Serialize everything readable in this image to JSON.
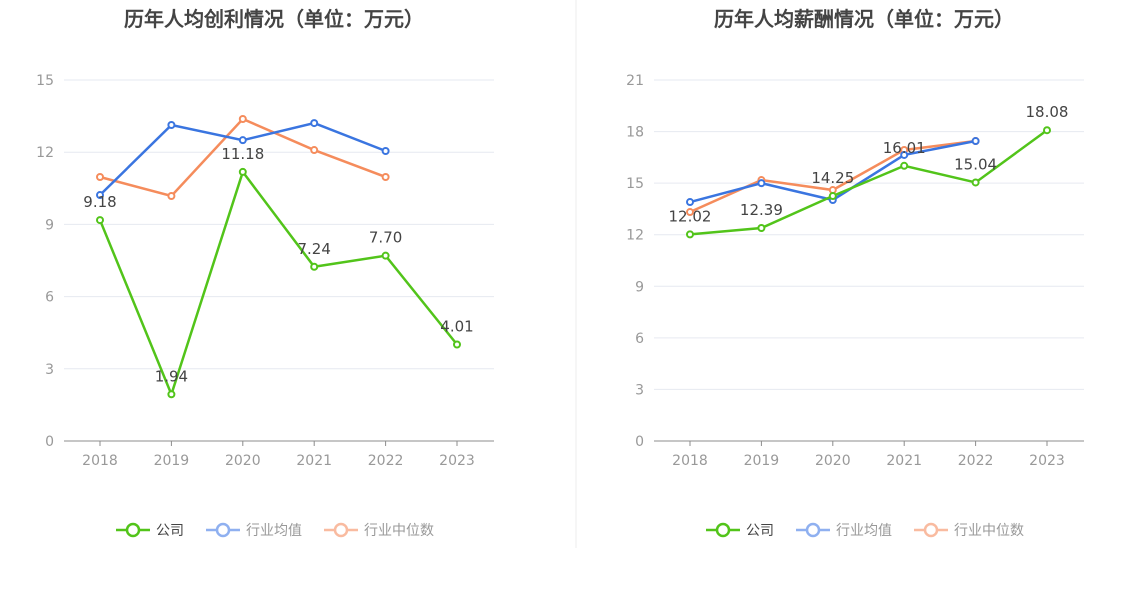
{
  "colors": {
    "company": "#52c41a",
    "avg": "#3a75e0",
    "median": "#f58c5c",
    "avg_legend": "#8fb0f0",
    "median_legend": "#f9bba0",
    "grid": "#e6e9f0",
    "axis": "#8c8c8c",
    "text": "#999999",
    "title": "#444444"
  },
  "legend": [
    "公司",
    "行业均值",
    "行业中位数"
  ],
  "chart_data": [
    {
      "type": "line",
      "title": "历年人均创利情况（单位：万元）",
      "categories": [
        "2018",
        "2019",
        "2020",
        "2021",
        "2022",
        "2023"
      ],
      "ylim": [
        0,
        15
      ],
      "yticks": [
        0,
        3,
        6,
        9,
        12,
        15
      ],
      "grid": true,
      "legend_position": "bottom",
      "series": [
        {
          "name": "公司",
          "values": [
            9.18,
            1.94,
            11.18,
            7.24,
            7.7,
            4.01
          ],
          "labels": [
            "9.18",
            "1.94",
            "11.18",
            "7.24",
            "7.70",
            "4.01"
          ]
        },
        {
          "name": "行业均值",
          "values": [
            10.22,
            13.13,
            12.5,
            13.21,
            12.05,
            null
          ]
        },
        {
          "name": "行业中位数",
          "values": [
            10.97,
            10.18,
            13.38,
            12.09,
            10.97,
            null
          ]
        }
      ]
    },
    {
      "type": "line",
      "title": "历年人均薪酬情况（单位：万元）",
      "categories": [
        "2018",
        "2019",
        "2020",
        "2021",
        "2022",
        "2023"
      ],
      "ylim": [
        0,
        21
      ],
      "yticks": [
        0,
        3,
        6,
        9,
        12,
        15,
        18,
        21
      ],
      "grid": true,
      "legend_position": "bottom",
      "series": [
        {
          "name": "公司",
          "values": [
            12.02,
            12.39,
            14.25,
            16.01,
            15.04,
            18.08
          ],
          "labels": [
            "12.02",
            "12.39",
            "14.25",
            "16.01",
            "15.04",
            "18.08"
          ]
        },
        {
          "name": "行业均值",
          "values": [
            13.9,
            15.0,
            14.02,
            16.64,
            17.45,
            null
          ]
        },
        {
          "name": "行业中位数",
          "values": [
            13.32,
            15.18,
            14.6,
            16.93,
            17.45,
            null
          ]
        }
      ]
    }
  ]
}
